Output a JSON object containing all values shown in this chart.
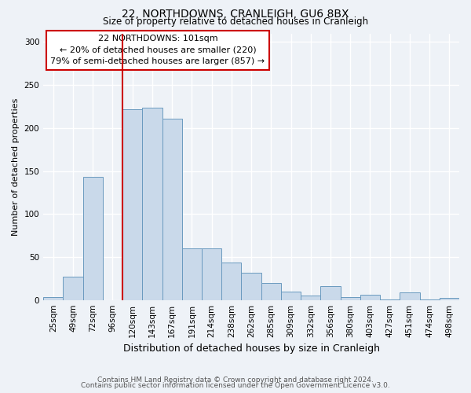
{
  "title": "22, NORTHDOWNS, CRANLEIGH, GU6 8BX",
  "subtitle": "Size of property relative to detached houses in Cranleigh",
  "xlabel": "Distribution of detached houses by size in Cranleigh",
  "ylabel": "Number of detached properties",
  "bar_labels": [
    "25sqm",
    "49sqm",
    "72sqm",
    "96sqm",
    "120sqm",
    "143sqm",
    "167sqm",
    "191sqm",
    "214sqm",
    "238sqm",
    "262sqm",
    "285sqm",
    "309sqm",
    "332sqm",
    "356sqm",
    "380sqm",
    "403sqm",
    "427sqm",
    "451sqm",
    "474sqm",
    "498sqm"
  ],
  "bar_values": [
    3,
    27,
    143,
    0,
    222,
    224,
    211,
    60,
    60,
    44,
    32,
    20,
    10,
    5,
    16,
    3,
    6,
    1,
    9,
    1,
    2
  ],
  "bar_color": "#c9d9ea",
  "bar_edge_color": "#6a9abf",
  "vline_x": 3,
  "vline_color": "#cc0000",
  "annotation_title": "22 NORTHDOWNS: 101sqm",
  "annotation_line1": "← 20% of detached houses are smaller (220)",
  "annotation_line2": "79% of semi-detached houses are larger (857) →",
  "annotation_box_facecolor": "#ffffff",
  "annotation_box_edgecolor": "#cc0000",
  "ylim": [
    0,
    310
  ],
  "yticks": [
    0,
    50,
    100,
    150,
    200,
    250,
    300
  ],
  "footnote1": "Contains HM Land Registry data © Crown copyright and database right 2024.",
  "footnote2": "Contains public sector information licensed under the Open Government Licence v3.0.",
  "background_color": "#eef2f7",
  "grid_color": "#ffffff",
  "title_fontsize": 10,
  "subtitle_fontsize": 8.5,
  "ylabel_fontsize": 8,
  "xlabel_fontsize": 9,
  "tick_fontsize": 7.5,
  "footnote_fontsize": 6.5
}
